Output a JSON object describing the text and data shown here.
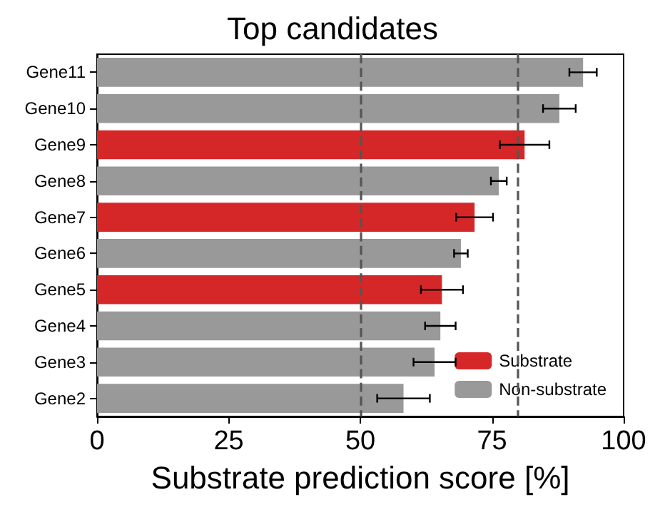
{
  "chart_data": {
    "type": "bar",
    "orientation": "horizontal",
    "title": "Top candidates",
    "xlabel": "Substrate prediction score [%]",
    "categories": [
      "Gene11",
      "Gene10",
      "Gene9",
      "Gene8",
      "Gene7",
      "Gene6",
      "Gene5",
      "Gene4",
      "Gene3",
      "Gene2"
    ],
    "series": [
      {
        "name": "Substrate",
        "color": "#d62728",
        "values": [
          null,
          null,
          81.2,
          null,
          71.7,
          null,
          65.5,
          null,
          null,
          null
        ],
        "errors": [
          null,
          null,
          4.7,
          null,
          3.5,
          null,
          4,
          null,
          null,
          null
        ]
      },
      {
        "name": "Non-substrate",
        "color": "#999999",
        "values": [
          92.3,
          87.8,
          null,
          76.3,
          null,
          69.1,
          null,
          65.2,
          64.1,
          58.2
        ],
        "errors": [
          2.6,
          3.1,
          null,
          1.5,
          null,
          1.3,
          null,
          2.9,
          4,
          5
        ]
      }
    ],
    "xlim": [
      0,
      100
    ],
    "xticks": [
      0,
      25,
      50,
      75,
      100
    ],
    "ref_lines": [
      {
        "axis": "x",
        "value": 50,
        "color": "#555555",
        "line_style": "dashed"
      },
      {
        "axis": "x",
        "value": 80,
        "color": "#555555",
        "line_style": "dashed"
      }
    ],
    "grid": false,
    "legend": "bottom right"
  }
}
